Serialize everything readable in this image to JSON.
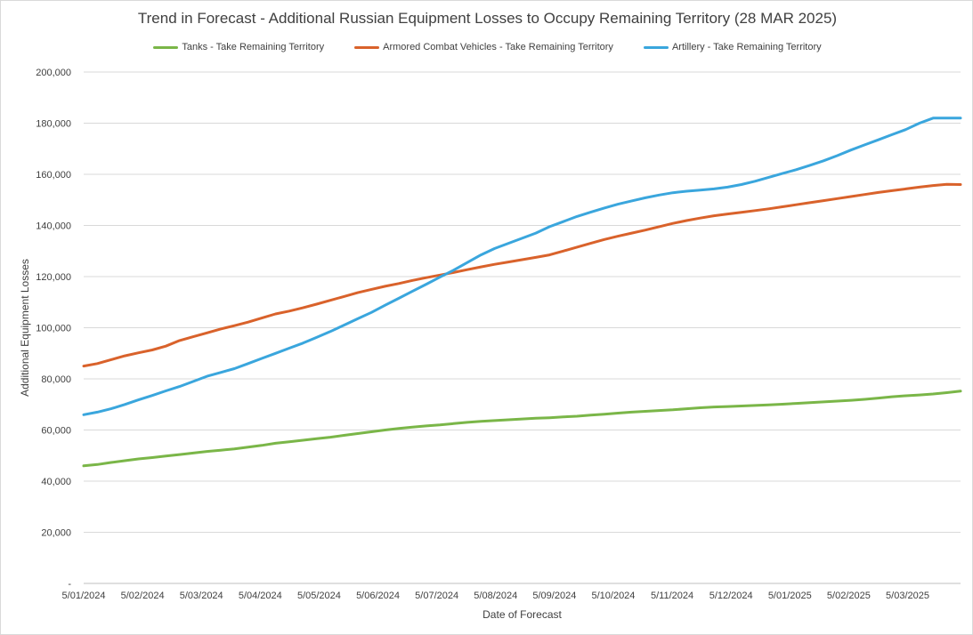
{
  "chart_data": {
    "type": "line",
    "title": "Trend in Forecast - Additional Russian Equipment Losses to Occupy Remaining Territory (28 MAR 2025)",
    "xlabel": "Date of Forecast",
    "ylabel": "Additional Equipment Losses",
    "ylim": [
      0,
      200000
    ],
    "y_ticks": [
      "-",
      "20,000",
      "40,000",
      "60,000",
      "80,000",
      "100,000",
      "120,000",
      "140,000",
      "160,000",
      "180,000",
      "200,000"
    ],
    "x_ticks": [
      "5/01/2024",
      "5/02/2024",
      "5/03/2024",
      "5/04/2024",
      "5/05/2024",
      "5/06/2024",
      "5/07/2024",
      "5/08/2024",
      "5/09/2024",
      "5/10/2024",
      "5/11/2024",
      "5/12/2024",
      "5/01/2025",
      "5/02/2025",
      "5/03/2025"
    ],
    "x_start": "5/01/2024",
    "x_end": "28/03/2025",
    "grid": true,
    "legend_position": "top",
    "series": [
      {
        "name": "Tanks - Take Remaining Territory",
        "color": "#7ab648",
        "values": [
          46000,
          46500,
          47300,
          48000,
          48700,
          49200,
          49800,
          50400,
          51000,
          51600,
          52100,
          52600,
          53300,
          54000,
          54800,
          55400,
          56000,
          56600,
          57200,
          57900,
          58600,
          59300,
          60000,
          60600,
          61100,
          61600,
          62000,
          62500,
          63000,
          63400,
          63700,
          64000,
          64300,
          64600,
          64800,
          65100,
          65400,
          65800,
          66200,
          66600,
          67000,
          67300,
          67600,
          67900,
          68300,
          68700,
          69000,
          69200,
          69400,
          69600,
          69800,
          70100,
          70400,
          70700,
          71000,
          71300,
          71600,
          72000,
          72500,
          73000,
          73400,
          73700,
          74100,
          74600,
          75200
        ]
      },
      {
        "name": "Armored Combat Vehicles - Take Remaining Territory",
        "color": "#d9622b",
        "values": [
          85000,
          86000,
          87500,
          89000,
          90200,
          91300,
          92800,
          95000,
          96500,
          98000,
          99500,
          100800,
          102200,
          103800,
          105400,
          106500,
          107800,
          109200,
          110700,
          112200,
          113700,
          115000,
          116200,
          117300,
          118500,
          119600,
          120600,
          121600,
          122700,
          123800,
          124800,
          125700,
          126600,
          127500,
          128500,
          130000,
          131500,
          133000,
          134500,
          135800,
          137000,
          138200,
          139500,
          140800,
          141900,
          142900,
          143800,
          144500,
          145100,
          145800,
          146500,
          147300,
          148100,
          148900,
          149700,
          150500,
          151300,
          152100,
          152900,
          153600,
          154300,
          155000,
          155600,
          156100,
          156000
        ]
      },
      {
        "name": "Artillery - Take Remaining Territory",
        "color": "#3aa6dd",
        "values": [
          66000,
          67000,
          68300,
          70000,
          71800,
          73500,
          75300,
          77000,
          79000,
          81000,
          82500,
          84000,
          86000,
          88000,
          90000,
          92000,
          94000,
          96200,
          98500,
          101000,
          103500,
          106000,
          108800,
          111500,
          114300,
          117000,
          119800,
          122500,
          125500,
          128500,
          131000,
          133000,
          135000,
          137000,
          139500,
          141500,
          143500,
          145200,
          146800,
          148300,
          149600,
          150800,
          151900,
          152800,
          153400,
          153800,
          154300,
          155000,
          156000,
          157300,
          158800,
          160300,
          161800,
          163500,
          165300,
          167300,
          169500,
          171500,
          173500,
          175500,
          177500,
          180000,
          182000,
          182000,
          182000
        ]
      }
    ]
  }
}
